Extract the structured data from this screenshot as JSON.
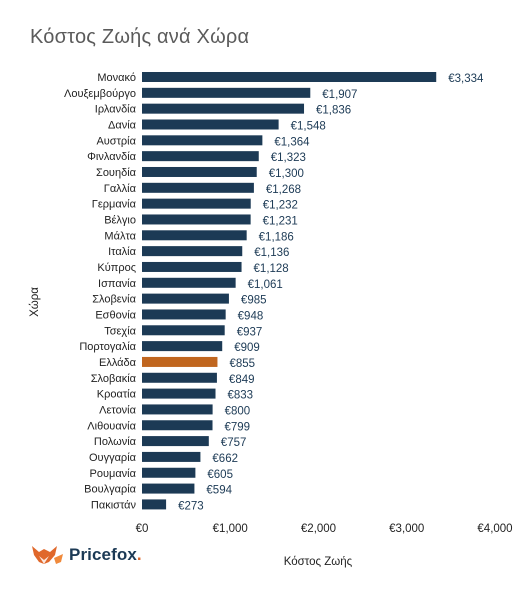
{
  "chart_data": {
    "type": "bar",
    "orientation": "horizontal",
    "title": "Κόστος Ζωής ανά Χώρα",
    "xlabel": "Κόστος Ζωής",
    "ylabel": "Χώρα",
    "xlim": [
      0,
      4000
    ],
    "xticks": [
      "€0",
      "€1,000",
      "€2,000",
      "€3,000",
      "€4,000"
    ],
    "categories": [
      "Μονακό",
      "Λουξεμβούργο",
      "Ιρλανδία",
      "Δανία",
      "Αυστρία",
      "Φινλανδία",
      "Σουηδία",
      "Γαλλία",
      "Γερμανία",
      "Βέλγιο",
      "Μάλτα",
      "Ιταλία",
      "Κύπρος",
      "Ισπανία",
      "Σλοβενία",
      "Εσθονία",
      "Τσεχία",
      "Πορτογαλία",
      "Ελλάδα",
      "Σλοβακία",
      "Κροατία",
      "Λετονία",
      "Λιθουανία",
      "Πολωνία",
      "Ουγγαρία",
      "Ρουμανία",
      "Βουλγαρία",
      "Πακιστάν"
    ],
    "values": [
      3334,
      1907,
      1836,
      1548,
      1364,
      1323,
      1300,
      1268,
      1232,
      1231,
      1186,
      1136,
      1128,
      1061,
      985,
      948,
      937,
      909,
      855,
      849,
      833,
      800,
      799,
      757,
      662,
      605,
      594,
      273
    ],
    "value_labels": [
      "€3,334",
      "€1,907",
      "€1,836",
      "€1,548",
      "€1,364",
      "€1,323",
      "€1,300",
      "€1,268",
      "€1,232",
      "€1,231",
      "€1,186",
      "€1,136",
      "€1,128",
      "€1,061",
      "€985",
      "€948",
      "€937",
      "€909",
      "€855",
      "€849",
      "€833",
      "€800",
      "€799",
      "€757",
      "€662",
      "€605",
      "€594",
      "€273"
    ],
    "highlight": "Ελλάδα",
    "grid": false,
    "legend": "none",
    "colors": {
      "bar": "#1c3a55",
      "highlight": "#c0661f",
      "label": "#1c3a55",
      "highlight_label": "#c0661f"
    }
  },
  "branding": {
    "logo_icon": "fox-icon",
    "logo_text": "Pricefox",
    "logo_dot": "."
  }
}
